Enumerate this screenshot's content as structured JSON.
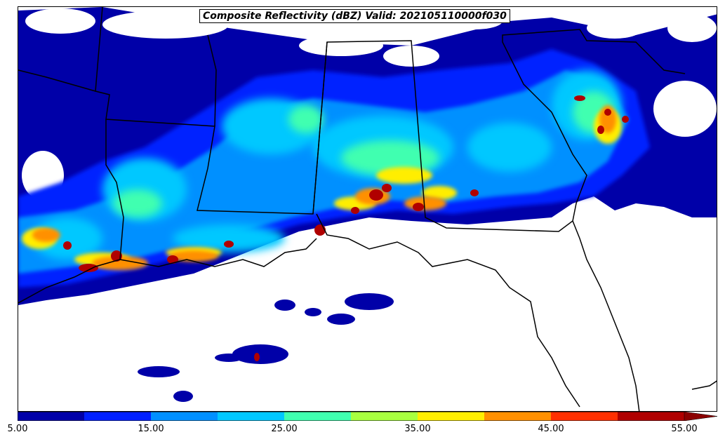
{
  "title": "Composite Reflectivity (dBZ) Valid: 202105110000f030",
  "colorbar": {
    "ticks": [
      "5.00",
      "15.00",
      "25.00",
      "35.00",
      "45.00",
      "55.00"
    ],
    "min": 5,
    "max": 55,
    "extend": "max",
    "colors": [
      "#0000a8",
      "#0020ff",
      "#0090ff",
      "#00c8ff",
      "#40ffb0",
      "#a8ff40",
      "#ffee00",
      "#ff9000",
      "#ff3000",
      "#b00000"
    ],
    "extend_color": "#8b0000"
  },
  "map": {
    "background": "#ffffff",
    "boundary_color": "#000000"
  }
}
